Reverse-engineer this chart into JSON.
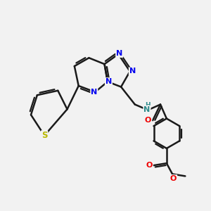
{
  "background_color": "#f2f2f2",
  "bond_color": "#1a1a1a",
  "bond_width": 1.8,
  "atom_colors": {
    "N_blue": "#0000ee",
    "N_teal": "#2e8b8b",
    "S_yellow": "#b8b800",
    "O_red": "#ee0000",
    "C": "#1a1a1a"
  },
  "figsize": [
    3.0,
    3.0
  ],
  "dpi": 100,
  "xlim": [
    0,
    10
  ],
  "ylim": [
    0,
    10
  ]
}
